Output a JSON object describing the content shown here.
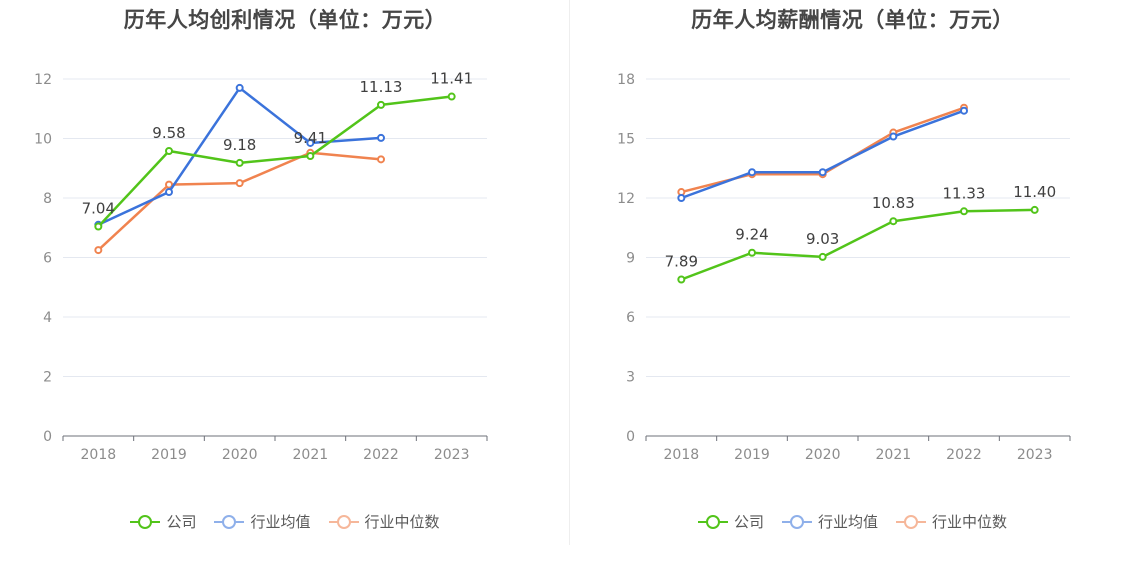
{
  "charts": [
    {
      "title": "历年人均创利情况（单位：万元）",
      "legend": [
        "公司",
        "行业均值",
        "行业中位数"
      ]
    },
    {
      "title": "历年人均薪酬情况（单位：万元）",
      "legend": [
        "公司",
        "行业均值",
        "行业中位数"
      ]
    }
  ],
  "chart_data": [
    {
      "type": "line",
      "title": "历年人均创利情况（单位：万元）",
      "categories": [
        "2018",
        "2019",
        "2020",
        "2021",
        "2022",
        "2023"
      ],
      "yticks": [
        0,
        2,
        4,
        6,
        8,
        10,
        12
      ],
      "ylim": [
        0,
        12
      ],
      "series": [
        {
          "name": "公司",
          "color": "#52c41a",
          "values": [
            7.04,
            9.58,
            9.18,
            9.41,
            11.13,
            11.41
          ],
          "labels": true
        },
        {
          "name": "行业均值",
          "color": "#3b73db",
          "values": [
            7.1,
            8.2,
            11.7,
            9.85,
            10.02,
            null
          ],
          "labels": false
        },
        {
          "name": "行业中位数",
          "color": "#f0834f",
          "values": [
            6.25,
            8.45,
            8.5,
            9.52,
            9.3,
            null
          ],
          "labels": false
        }
      ],
      "grid": true,
      "legend_position": "bottom"
    },
    {
      "type": "line",
      "title": "历年人均薪酬情况（单位：万元）",
      "categories": [
        "2018",
        "2019",
        "2020",
        "2021",
        "2022",
        "2023"
      ],
      "yticks": [
        0,
        3,
        6,
        9,
        12,
        15,
        18
      ],
      "ylim": [
        0,
        18
      ],
      "series": [
        {
          "name": "公司",
          "color": "#52c41a",
          "values": [
            7.89,
            9.24,
            9.03,
            10.83,
            11.33,
            11.4
          ],
          "labels": true
        },
        {
          "name": "行业均值",
          "color": "#3b73db",
          "values": [
            12.0,
            13.3,
            13.3,
            15.1,
            16.4,
            null
          ],
          "labels": false
        },
        {
          "name": "行业中位数",
          "color": "#f0834f",
          "values": [
            12.3,
            13.2,
            13.2,
            15.3,
            16.55,
            null
          ],
          "labels": false
        }
      ],
      "grid": true,
      "legend_position": "bottom"
    }
  ]
}
